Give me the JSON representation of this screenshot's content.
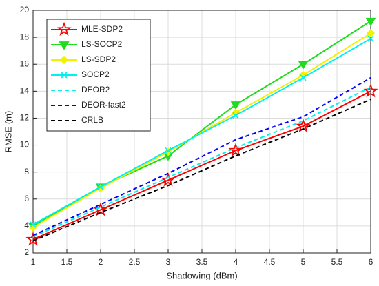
{
  "chart_data": {
    "type": "line",
    "xlabel": "Shadowing (dBm)",
    "ylabel": "RMSE (m)",
    "x": [
      1,
      2,
      3,
      4,
      5,
      6
    ],
    "series": [
      {
        "name": "MLE-SDP2",
        "color": "#ff0000",
        "marker": "star",
        "dash": "solid",
        "values": [
          3.0,
          5.2,
          7.4,
          9.6,
          11.4,
          14.0
        ]
      },
      {
        "name": "LS-SOCP2",
        "color": "#1fdc1f",
        "marker": "triangle-down",
        "dash": "solid",
        "values": [
          4.0,
          6.9,
          9.2,
          13.0,
          16.0,
          19.2
        ]
      },
      {
        "name": "LS-SDP2",
        "color": "#f2f200",
        "marker": "diamond",
        "dash": "solid",
        "values": [
          3.9,
          6.8,
          9.5,
          12.4,
          15.2,
          18.3
        ]
      },
      {
        "name": "SOCP2",
        "color": "#00f0f0",
        "marker": "x",
        "dash": "solid",
        "values": [
          4.1,
          6.9,
          9.6,
          12.2,
          15.0,
          17.9
        ]
      },
      {
        "name": "DEOR2",
        "color": "#00f0f0",
        "marker": null,
        "dash": "dashed",
        "values": [
          3.2,
          5.4,
          7.6,
          9.8,
          11.8,
          14.3
        ]
      },
      {
        "name": "DEOR-fast2",
        "color": "#0000ff",
        "marker": null,
        "dash": "dashed",
        "values": [
          3.3,
          5.6,
          7.9,
          10.4,
          12.1,
          15.0
        ]
      },
      {
        "name": "CRLB",
        "color": "#000000",
        "marker": null,
        "dash": "dashed",
        "values": [
          2.9,
          5.0,
          7.0,
          9.2,
          11.2,
          13.4
        ]
      }
    ],
    "xlim": [
      1,
      6
    ],
    "xticks": [
      1,
      1.5,
      2,
      2.5,
      3,
      3.5,
      4,
      4.5,
      5,
      5.5,
      6
    ],
    "ylim": [
      2,
      20
    ],
    "yticks": [
      2,
      4,
      6,
      8,
      10,
      12,
      14,
      16,
      18,
      20
    ],
    "grid": true,
    "legend": "top-left"
  }
}
